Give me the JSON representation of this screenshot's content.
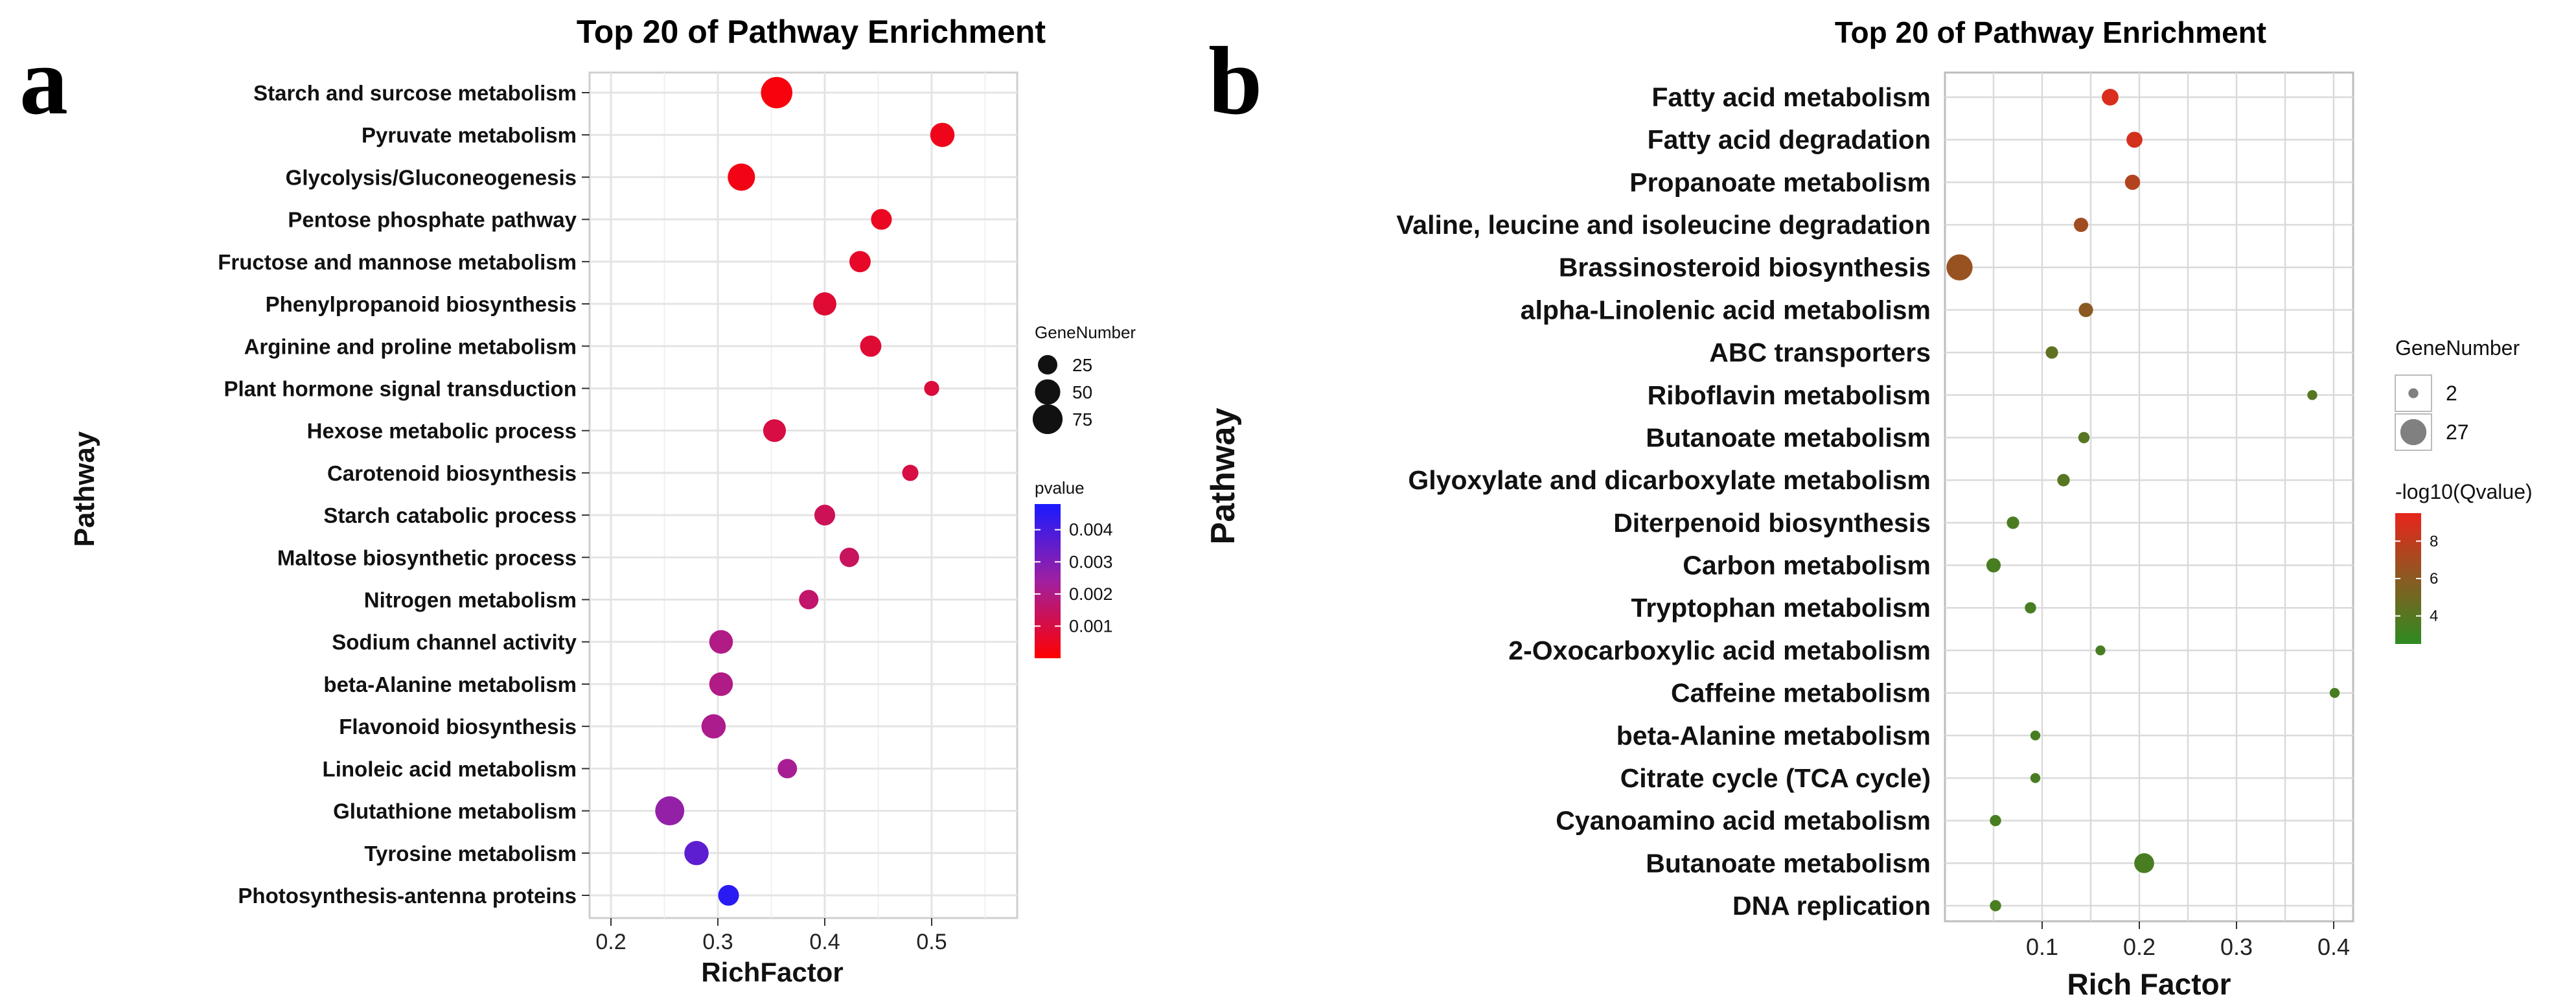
{
  "figure": {
    "panel_a_letter": "a",
    "panel_b_letter": "b"
  },
  "chart_data": [
    {
      "panel": "a",
      "type": "scatter",
      "title": "Top 20 of Pathway Enrichment",
      "xlabel": "RichFactor",
      "ylabel": "Pathway",
      "xlim": [
        0.18,
        0.58
      ],
      "xticks": [
        0.2,
        0.3,
        0.4,
        0.5
      ],
      "xtick_labels": [
        "0.2",
        "0.3",
        "0.4",
        "0.5"
      ],
      "grid": true,
      "size_legend": {
        "title": "GeneNumber",
        "values": [
          25,
          50,
          75
        ],
        "labels": [
          "25",
          "50",
          "75"
        ]
      },
      "color_legend": {
        "title": "pvalue",
        "min": 0,
        "max": 0.0048,
        "ticks": [
          0.004,
          0.003,
          0.002,
          0.001
        ],
        "tick_labels": [
          "0.004",
          "0.003",
          "0.002",
          "0.001"
        ],
        "low_color": "#ff0000",
        "high_color": "#1a1aff"
      },
      "pathways": [
        "Starch and surcose metabolism",
        "Pyruvate metabolism",
        "Glycolysis/Gluconeogenesis",
        "Pentose phosphate pathway",
        "Fructose and mannose metabolism",
        "Phenylpropanoid biosynthesis",
        "Arginine and proline metabolism",
        "Plant hormone signal transduction",
        "Hexose metabolic process",
        "Carotenoid biosynthesis",
        "Starch catabolic process",
        "Maltose biosynthetic process",
        "Nitrogen metabolism",
        "Sodium channel activity",
        "beta-Alanine metabolism",
        "Flavonoid biosynthesis",
        "Linoleic acid metabolism",
        "Glutathione metabolism",
        "Tyrosine metabolism",
        "Photosynthesis-antenna proteins"
      ],
      "rich_factor": [
        0.355,
        0.51,
        0.322,
        0.453,
        0.433,
        0.4,
        0.443,
        0.5,
        0.353,
        0.48,
        0.4,
        0.423,
        0.385,
        0.303,
        0.303,
        0.296,
        0.365,
        0.255,
        0.28,
        0.31
      ],
      "gene_number": [
        85,
        45,
        60,
        30,
        32,
        40,
        32,
        12,
        38,
        15,
        30,
        25,
        25,
        42,
        42,
        45,
        25,
        70,
        45,
        30
      ],
      "pvalue": [
        0.0002,
        0.0004,
        0.0003,
        0.0005,
        0.0006,
        0.0008,
        0.0008,
        0.0009,
        0.001,
        0.001,
        0.0013,
        0.0014,
        0.0016,
        0.002,
        0.002,
        0.0021,
        0.0022,
        0.0026,
        0.0036,
        0.0045
      ]
    },
    {
      "panel": "b",
      "type": "scatter",
      "title": "Top 20 of Pathway Enrichment",
      "xlabel": "Rich Factor",
      "ylabel": "Pathway",
      "xlim": [
        0.0,
        0.42
      ],
      "xticks": [
        0.1,
        0.2,
        0.3,
        0.4
      ],
      "xtick_labels": [
        "0.1",
        "0.2",
        "0.3",
        "0.4"
      ],
      "grid": true,
      "size_legend": {
        "title": "GeneNumber",
        "values": [
          2,
          27
        ],
        "labels": [
          "2",
          "27"
        ]
      },
      "color_legend": {
        "title": "-log10(Qvalue)",
        "min": 2.5,
        "max": 9.5,
        "ticks": [
          8,
          6,
          4
        ],
        "tick_labels": [
          "8",
          "6",
          "4"
        ],
        "low_color": "#2e8b22",
        "high_color": "#e8251c"
      },
      "pathways": [
        "Fatty acid metabolism",
        "Fatty acid degradation",
        "Propanoate metabolism",
        "Valine, leucine and isoleucine degradation",
        "Brassinosteroid biosynthesis",
        "alpha-Linolenic acid metabolism",
        "ABC transporters",
        "Riboflavin metabolism",
        "Butanoate metabolism",
        "Glyoxylate and dicarboxylate metabolism",
        "Diterpenoid biosynthesis",
        "Carbon metabolism",
        "Tryptophan metabolism",
        "2-Oxocarboxylic acid metabolism",
        "Caffeine metabolism",
        "beta-Alanine metabolism",
        "Citrate cycle (TCA cycle)",
        "Cyanoamino acid metabolism",
        "Butanoate metabolism",
        "DNA replication"
      ],
      "rich_factor": [
        0.17,
        0.195,
        0.193,
        0.14,
        0.015,
        0.145,
        0.11,
        0.378,
        0.143,
        0.122,
        0.07,
        0.05,
        0.088,
        0.16,
        0.401,
        0.093,
        0.093,
        0.052,
        0.205,
        0.052
      ],
      "gene_number": [
        9,
        8,
        7,
        6,
        27,
        6,
        4,
        2,
        3,
        4,
        4,
        6,
        3,
        2,
        2,
        2,
        2,
        3,
        14,
        3
      ],
      "neg_log10_qvalue": [
        9.0,
        8.7,
        7.5,
        6.8,
        6.5,
        6.0,
        4.3,
        4.0,
        4.0,
        4.0,
        3.6,
        3.5,
        3.5,
        3.5,
        3.5,
        3.5,
        3.5,
        3.5,
        3.5,
        3.5
      ]
    }
  ]
}
